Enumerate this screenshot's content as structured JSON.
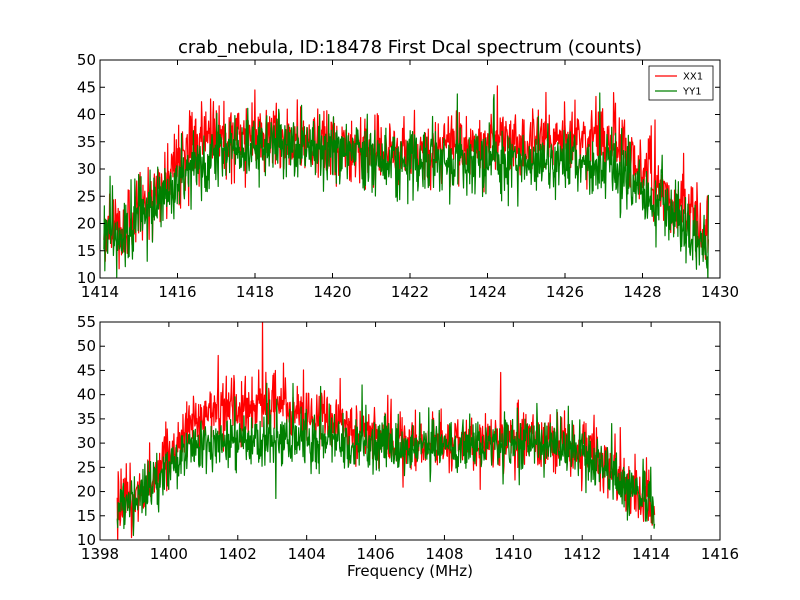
{
  "chart_data": [
    {
      "type": "line",
      "title": "crab_nebula, ID:18478 First Dcal spectrum (counts)",
      "xlabel": "",
      "ylabel": "",
      "xlim": [
        1414,
        1430
      ],
      "ylim": [
        10,
        50
      ],
      "xticks": [
        1414,
        1416,
        1418,
        1420,
        1422,
        1424,
        1426,
        1428,
        1430
      ],
      "yticks": [
        10,
        15,
        20,
        25,
        30,
        35,
        40,
        45,
        50
      ],
      "grid": false,
      "legend": "top-right",
      "series": [
        {
          "name": "XX1",
          "color": "#ff0000",
          "x_range": [
            1414.1,
            1429.7
          ],
          "profile": [
            [
              1414.1,
              19
            ],
            [
              1414.6,
              19
            ],
            [
              1415.0,
              22
            ],
            [
              1415.5,
              26
            ],
            [
              1416.0,
              31
            ],
            [
              1416.5,
              35
            ],
            [
              1417.0,
              36
            ],
            [
              1418.0,
              36
            ],
            [
              1419.0,
              35
            ],
            [
              1420.0,
              34
            ],
            [
              1421.0,
              33
            ],
            [
              1422.0,
              33
            ],
            [
              1423.0,
              34
            ],
            [
              1424.0,
              35
            ],
            [
              1425.0,
              35
            ],
            [
              1426.0,
              36
            ],
            [
              1426.8,
              36
            ],
            [
              1427.5,
              33
            ],
            [
              1428.0,
              30
            ],
            [
              1428.5,
              26
            ],
            [
              1429.0,
              23
            ],
            [
              1429.4,
              20
            ],
            [
              1429.7,
              18
            ]
          ],
          "noise": 3.8
        },
        {
          "name": "YY1",
          "color": "#008000",
          "x_range": [
            1414.1,
            1429.7
          ],
          "profile": [
            [
              1414.1,
              17
            ],
            [
              1414.6,
              18
            ],
            [
              1415.0,
              21
            ],
            [
              1415.5,
              24
            ],
            [
              1416.0,
              28
            ],
            [
              1416.5,
              31
            ],
            [
              1417.0,
              33
            ],
            [
              1418.0,
              34
            ],
            [
              1419.0,
              34
            ],
            [
              1420.0,
              33
            ],
            [
              1421.0,
              32
            ],
            [
              1422.0,
              31
            ],
            [
              1423.0,
              31
            ],
            [
              1424.0,
              31
            ],
            [
              1425.0,
              31
            ],
            [
              1426.0,
              32
            ],
            [
              1427.0,
              30
            ],
            [
              1428.0,
              26
            ],
            [
              1428.5,
              23
            ],
            [
              1429.0,
              20
            ],
            [
              1429.7,
              16
            ]
          ],
          "noise": 3.6
        }
      ]
    },
    {
      "type": "line",
      "title": "",
      "xlabel": "Frequency (MHz)",
      "ylabel": "",
      "xlim": [
        1398,
        1416
      ],
      "ylim": [
        10,
        55
      ],
      "xticks": [
        1398,
        1400,
        1402,
        1404,
        1406,
        1408,
        1410,
        1412,
        1414,
        1416
      ],
      "yticks": [
        10,
        15,
        20,
        25,
        30,
        35,
        40,
        45,
        50,
        55
      ],
      "grid": false,
      "series": [
        {
          "name": "XX1",
          "color": "#ff0000",
          "x_range": [
            1398.5,
            1414.1
          ],
          "profile": [
            [
              1398.5,
              18
            ],
            [
              1399.0,
              19
            ],
            [
              1399.5,
              22
            ],
            [
              1400.0,
              28
            ],
            [
              1400.5,
              33
            ],
            [
              1401.0,
              36
            ],
            [
              1402.0,
              38
            ],
            [
              1403.0,
              38
            ],
            [
              1404.0,
              36
            ],
            [
              1405.0,
              33
            ],
            [
              1406.0,
              31
            ],
            [
              1407.0,
              30
            ],
            [
              1408.0,
              30
            ],
            [
              1409.0,
              30
            ],
            [
              1410.0,
              31
            ],
            [
              1411.0,
              31
            ],
            [
              1412.0,
              29
            ],
            [
              1412.5,
              27
            ],
            [
              1413.0,
              24
            ],
            [
              1413.5,
              21
            ],
            [
              1414.1,
              17
            ]
          ],
          "noise": 3.6
        },
        {
          "name": "YY1",
          "color": "#008000",
          "x_range": [
            1398.5,
            1414.1
          ],
          "profile": [
            [
              1398.5,
              17
            ],
            [
              1399.0,
              18
            ],
            [
              1399.5,
              21
            ],
            [
              1400.0,
              25
            ],
            [
              1400.5,
              28
            ],
            [
              1401.0,
              30
            ],
            [
              1402.0,
              31
            ],
            [
              1403.0,
              31
            ],
            [
              1404.0,
              30
            ],
            [
              1405.0,
              30
            ],
            [
              1406.0,
              29
            ],
            [
              1407.0,
              29
            ],
            [
              1408.0,
              29
            ],
            [
              1409.0,
              30
            ],
            [
              1410.0,
              30
            ],
            [
              1411.0,
              30
            ],
            [
              1412.0,
              28
            ],
            [
              1412.5,
              25
            ],
            [
              1413.0,
              22
            ],
            [
              1413.5,
              20
            ],
            [
              1414.1,
              17
            ]
          ],
          "noise": 3.3
        }
      ]
    }
  ]
}
